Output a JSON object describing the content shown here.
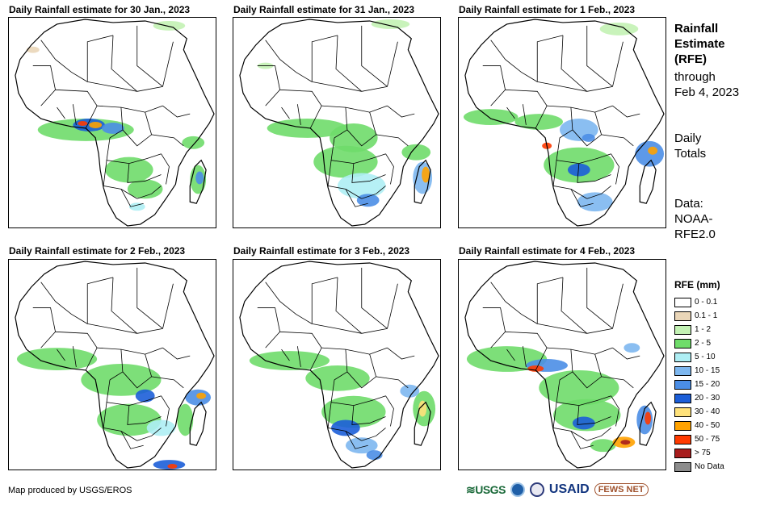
{
  "panels": [
    {
      "title": "Daily Rainfall estimate for 30 Jan., 2023"
    },
    {
      "title": "Daily Rainfall estimate for 31 Jan., 2023"
    },
    {
      "title": "Daily Rainfall estimate for 1 Feb., 2023"
    },
    {
      "title": "Daily Rainfall estimate for 2 Feb., 2023"
    },
    {
      "title": "Daily Rainfall estimate for 3 Feb., 2023"
    },
    {
      "title": "Daily Rainfall estimate for 4 Feb., 2023"
    }
  ],
  "side": {
    "title_line1": "Rainfall",
    "title_line2": "Estimate",
    "title_line3": "(RFE)",
    "through_line1": "through",
    "through_line2": "Feb 4, 2023",
    "totals_line1": "Daily",
    "totals_line2": "Totals",
    "data_line1": "Data:",
    "data_line2": "NOAA-",
    "data_line3": "RFE2.0"
  },
  "legend": {
    "title": "RFE (mm)",
    "items": [
      {
        "label": "0 - 0.1",
        "color": "#ffffff"
      },
      {
        "label": "0.1 - 1",
        "color": "#ead6b8"
      },
      {
        "label": "1 - 2",
        "color": "#c3f2b4"
      },
      {
        "label": "2 - 5",
        "color": "#6fdc6a"
      },
      {
        "label": "5 - 10",
        "color": "#aeeef4"
      },
      {
        "label": "10 - 15",
        "color": "#7db7ef"
      },
      {
        "label": "15 - 20",
        "color": "#4b8ee6"
      },
      {
        "label": "20 - 30",
        "color": "#1c5ed8"
      },
      {
        "label": "30 - 40",
        "color": "#ffe27a"
      },
      {
        "label": "40 - 50",
        "color": "#ffa200"
      },
      {
        "label": "50 - 75",
        "color": "#ff3a00"
      },
      {
        "label": "> 75",
        "color": "#a81d1d"
      },
      {
        "label": "No Data",
        "color": "#8c8c8c"
      }
    ]
  },
  "credit": "Map produced by USGS/EROS",
  "logos": {
    "usgs": "≋USGS",
    "usaid": "USAID",
    "fews": "FEWS NET"
  }
}
